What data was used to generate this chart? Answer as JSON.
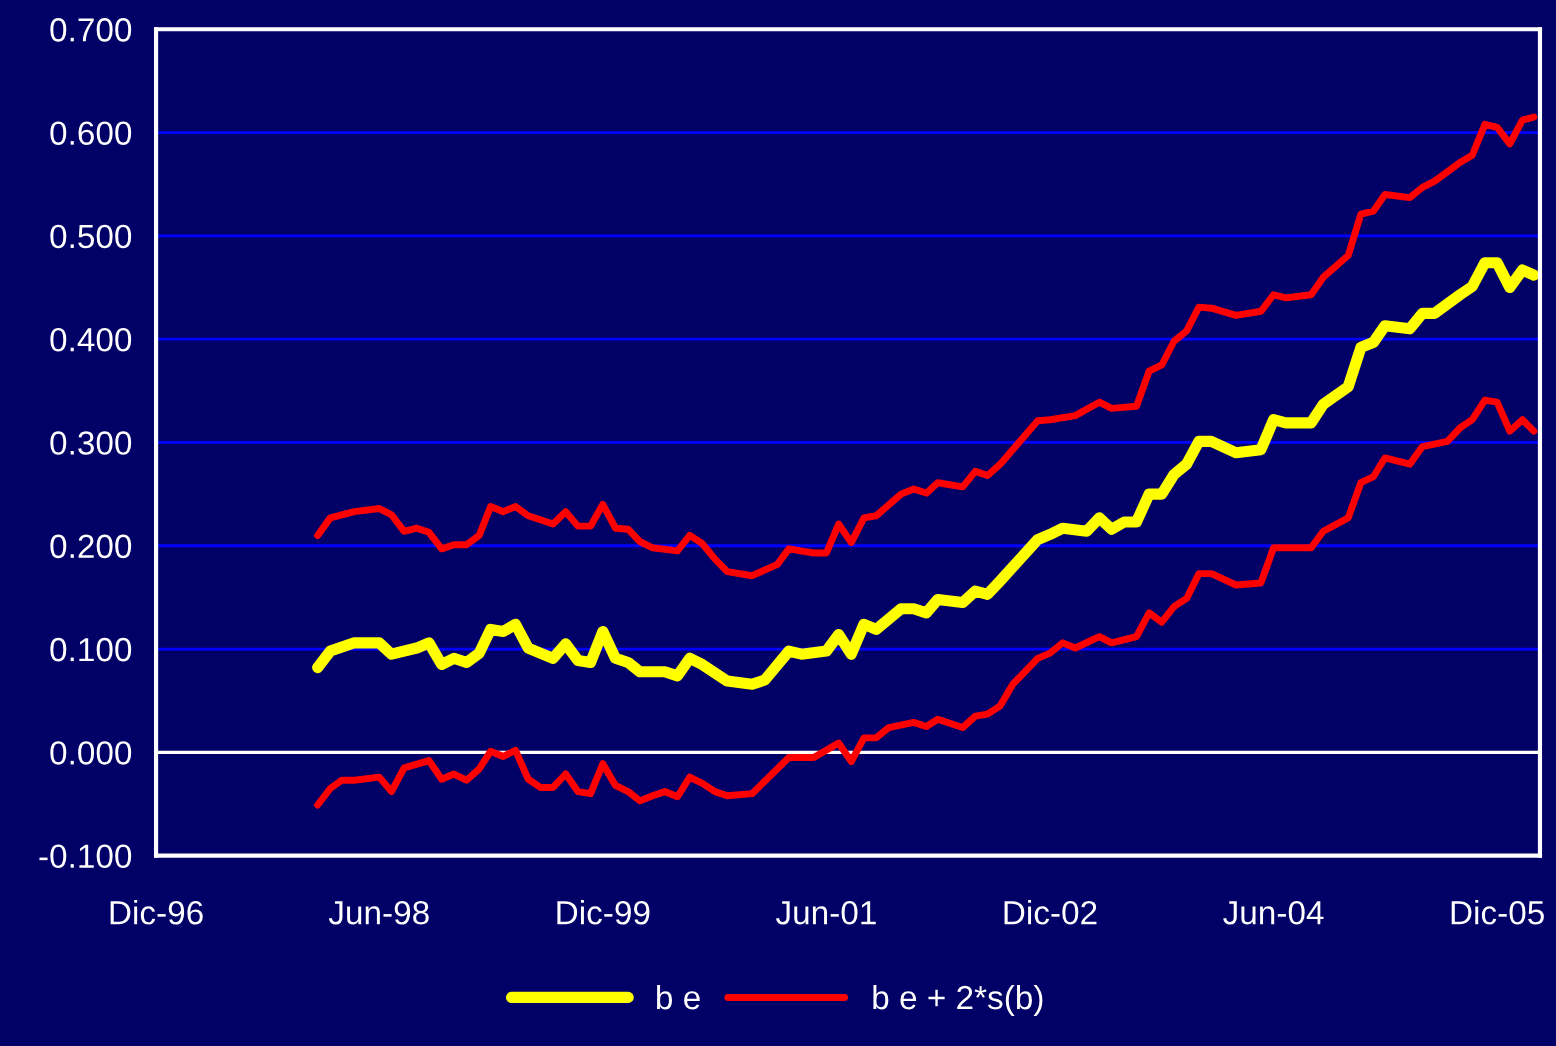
{
  "chart_data": {
    "type": "line",
    "grid": "y",
    "legend": "bottom",
    "marker": "none",
    "line_style": "solid",
    "xlim": [
      "1996-12-01",
      "2006-03-16"
    ],
    "xticks": [
      {
        "value": "1996-12",
        "label": "Dic-96"
      },
      {
        "value": "1998-06",
        "label": "Jun-98"
      },
      {
        "value": "1999-12",
        "label": "Dic-99"
      },
      {
        "value": "2001-06",
        "label": "Jun-01"
      },
      {
        "value": "2002-12",
        "label": "Dic-02"
      },
      {
        "value": "2004-06",
        "label": "Jun-04"
      },
      {
        "value": "2005-12",
        "label": "Dic-05"
      }
    ],
    "ylim": [
      -0.1,
      0.7
    ],
    "yticks": [
      {
        "value": -0.1,
        "label": "-0.100"
      },
      {
        "value": 0,
        "label": "0.000"
      },
      {
        "value": 0.1,
        "label": "0.100"
      },
      {
        "value": 0.2,
        "label": "0.200"
      },
      {
        "value": 0.3,
        "label": "0.300"
      },
      {
        "value": 0.4,
        "label": "0.400"
      },
      {
        "value": 0.5,
        "label": "0.500"
      },
      {
        "value": 0.6,
        "label": "0.600"
      },
      {
        "value": 0.7,
        "label": "0.700"
      }
    ],
    "series": [
      {
        "name": "b e",
        "color": "#ffff00",
        "x": [
          "1998-01",
          "1998-02",
          "1998-04",
          "1998-06",
          "1998-07",
          "1998-09",
          "1998-10",
          "1998-11",
          "1998-12",
          "1999-01",
          "1999-02",
          "1999-03",
          "1999-04",
          "1999-05",
          "1999-06",
          "1999-08",
          "1999-09",
          "1999-10",
          "1999-11",
          "1999-12",
          "2000-01",
          "2000-02",
          "2000-03",
          "2000-05",
          "2000-06",
          "2000-07",
          "2000-08",
          "2000-10",
          "2000-12",
          "2001-01",
          "2001-03",
          "2001-04",
          "2001-06",
          "2001-07",
          "2001-08",
          "2001-09",
          "2001-10",
          "2001-12",
          "2002-01",
          "2002-02",
          "2002-03",
          "2002-05",
          "2002-06",
          "2002-07",
          "2002-08",
          "2002-11",
          "2002-12",
          "2003-01",
          "2003-03",
          "2003-04",
          "2003-05",
          "2003-06",
          "2003-07",
          "2003-08",
          "2003-09",
          "2003-10",
          "2003-11",
          "2003-12",
          "2004-01",
          "2004-03",
          "2004-05",
          "2004-06",
          "2004-07",
          "2004-09",
          "2004-10",
          "2004-12",
          "2005-01",
          "2005-02",
          "2005-03",
          "2005-05",
          "2005-06",
          "2005-07",
          "2005-09",
          "2005-10",
          "2005-11",
          "2005-12",
          "2006-01",
          "2006-02",
          "2006-03"
        ],
        "values": [
          0.082,
          0.098,
          0.106,
          0.106,
          0.095,
          0.101,
          0.106,
          0.085,
          0.091,
          0.087,
          0.096,
          0.119,
          0.117,
          0.124,
          0.101,
          0.091,
          0.105,
          0.089,
          0.087,
          0.117,
          0.091,
          0.087,
          0.078,
          0.078,
          0.074,
          0.091,
          0.085,
          0.069,
          0.066,
          0.07,
          0.098,
          0.095,
          0.098,
          0.114,
          0.095,
          0.124,
          0.119,
          0.139,
          0.139,
          0.135,
          0.148,
          0.145,
          0.156,
          0.153,
          0.166,
          0.206,
          0.211,
          0.217,
          0.214,
          0.227,
          0.216,
          0.223,
          0.223,
          0.25,
          0.25,
          0.269,
          0.279,
          0.301,
          0.301,
          0.29,
          0.293,
          0.322,
          0.319,
          0.319,
          0.337,
          0.354,
          0.392,
          0.397,
          0.413,
          0.41,
          0.425,
          0.425,
          0.443,
          0.451,
          0.474,
          0.474,
          0.45,
          0.467,
          0.462
        ]
      },
      {
        "name": "b e + 2*s(b)",
        "color": "#ff0000",
        "x": [
          "1998-01",
          "1998-02",
          "1998-04",
          "1998-06",
          "1998-07",
          "1998-08",
          "1998-09",
          "1998-10",
          "1998-11",
          "1998-12",
          "1999-01",
          "1999-02",
          "1999-03",
          "1999-04",
          "1999-05",
          "1999-06",
          "1999-08",
          "1999-09",
          "1999-10",
          "1999-11",
          "1999-12",
          "2000-01",
          "2000-02",
          "2000-03",
          "2000-04",
          "2000-06",
          "2000-07",
          "2000-08",
          "2000-09",
          "2000-10",
          "2000-12",
          "2001-02",
          "2001-03",
          "2001-05",
          "2001-06",
          "2001-07",
          "2001-08",
          "2001-09",
          "2001-10",
          "2001-12",
          "2002-01",
          "2002-02",
          "2002-03",
          "2002-05",
          "2002-06",
          "2002-07",
          "2002-08",
          "2002-11",
          "2002-12",
          "2003-02",
          "2003-04",
          "2003-05",
          "2003-07",
          "2003-08",
          "2003-09",
          "2003-10",
          "2003-11",
          "2003-12",
          "2004-01",
          "2004-03",
          "2004-05",
          "2004-06",
          "2004-07",
          "2004-09",
          "2004-10",
          "2004-12",
          "2005-01",
          "2005-02",
          "2005-03",
          "2005-05",
          "2005-06",
          "2005-07",
          "2005-09",
          "2005-10",
          "2005-11",
          "2005-12",
          "2006-01",
          "2006-02",
          "2006-03"
        ],
        "values": [
          0.21,
          0.227,
          0.233,
          0.236,
          0.23,
          0.214,
          0.217,
          0.213,
          0.197,
          0.201,
          0.201,
          0.21,
          0.238,
          0.233,
          0.238,
          0.229,
          0.221,
          0.233,
          0.219,
          0.219,
          0.24,
          0.217,
          0.216,
          0.204,
          0.198,
          0.195,
          0.21,
          0.202,
          0.187,
          0.175,
          0.171,
          0.182,
          0.197,
          0.193,
          0.193,
          0.221,
          0.203,
          0.227,
          0.229,
          0.25,
          0.255,
          0.251,
          0.261,
          0.257,
          0.272,
          0.268,
          0.279,
          0.321,
          0.322,
          0.326,
          0.339,
          0.333,
          0.335,
          0.369,
          0.375,
          0.398,
          0.408,
          0.431,
          0.43,
          0.423,
          0.427,
          0.443,
          0.44,
          0.443,
          0.46,
          0.481,
          0.521,
          0.524,
          0.54,
          0.537,
          0.547,
          0.553,
          0.571,
          0.578,
          0.608,
          0.605,
          0.589,
          0.612,
          0.615
        ]
      },
      {
        "color": "#ff0000",
        "x": [
          "1998-01",
          "1998-02",
          "1998-03",
          "1998-04",
          "1998-06",
          "1998-07",
          "1998-08",
          "1998-10",
          "1998-11",
          "1998-12",
          "1999-01",
          "1999-02",
          "1999-03",
          "1999-04",
          "1999-05",
          "1999-06",
          "1999-07",
          "1999-08",
          "1999-09",
          "1999-10",
          "1999-11",
          "1999-12",
          "2000-01",
          "2000-02",
          "2000-03",
          "2000-04",
          "2000-05",
          "2000-06",
          "2000-07",
          "2000-08",
          "2000-09",
          "2000-10",
          "2000-12",
          "2001-03",
          "2001-05",
          "2001-07",
          "2001-08",
          "2001-09",
          "2001-10",
          "2001-11",
          "2002-01",
          "2002-02",
          "2002-03",
          "2002-05",
          "2002-06",
          "2002-07",
          "2002-08",
          "2002-09",
          "2002-11",
          "2002-12",
          "2003-01",
          "2003-02",
          "2003-04",
          "2003-05",
          "2003-07",
          "2003-08",
          "2003-09",
          "2003-10",
          "2003-11",
          "2003-12",
          "2004-01",
          "2004-03",
          "2004-05",
          "2004-06",
          "2004-09",
          "2004-10",
          "2004-12",
          "2005-01",
          "2005-02",
          "2005-03",
          "2005-05",
          "2005-06",
          "2005-08",
          "2005-09",
          "2005-10",
          "2005-11",
          "2005-12",
          "2006-01",
          "2006-02",
          "2006-03"
        ],
        "values": [
          -0.051,
          -0.035,
          -0.027,
          -0.027,
          -0.024,
          -0.038,
          -0.015,
          -0.008,
          -0.026,
          -0.021,
          -0.027,
          -0.016,
          0.001,
          -0.004,
          0.002,
          -0.026,
          -0.034,
          -0.034,
          -0.021,
          -0.038,
          -0.04,
          -0.011,
          -0.032,
          -0.038,
          -0.047,
          -0.042,
          -0.038,
          -0.043,
          -0.024,
          -0.03,
          -0.038,
          -0.042,
          -0.04,
          -0.005,
          -0.005,
          0.009,
          -0.009,
          0.014,
          0.014,
          0.024,
          0.029,
          0.025,
          0.032,
          0.024,
          0.035,
          0.037,
          0.045,
          0.066,
          0.091,
          0.096,
          0.106,
          0.101,
          0.112,
          0.106,
          0.112,
          0.135,
          0.126,
          0.141,
          0.149,
          0.173,
          0.173,
          0.162,
          0.164,
          0.198,
          0.198,
          0.214,
          0.227,
          0.261,
          0.267,
          0.285,
          0.279,
          0.296,
          0.301,
          0.314,
          0.322,
          0.341,
          0.339,
          0.311,
          0.322,
          0.311
        ]
      }
    ]
  }
}
